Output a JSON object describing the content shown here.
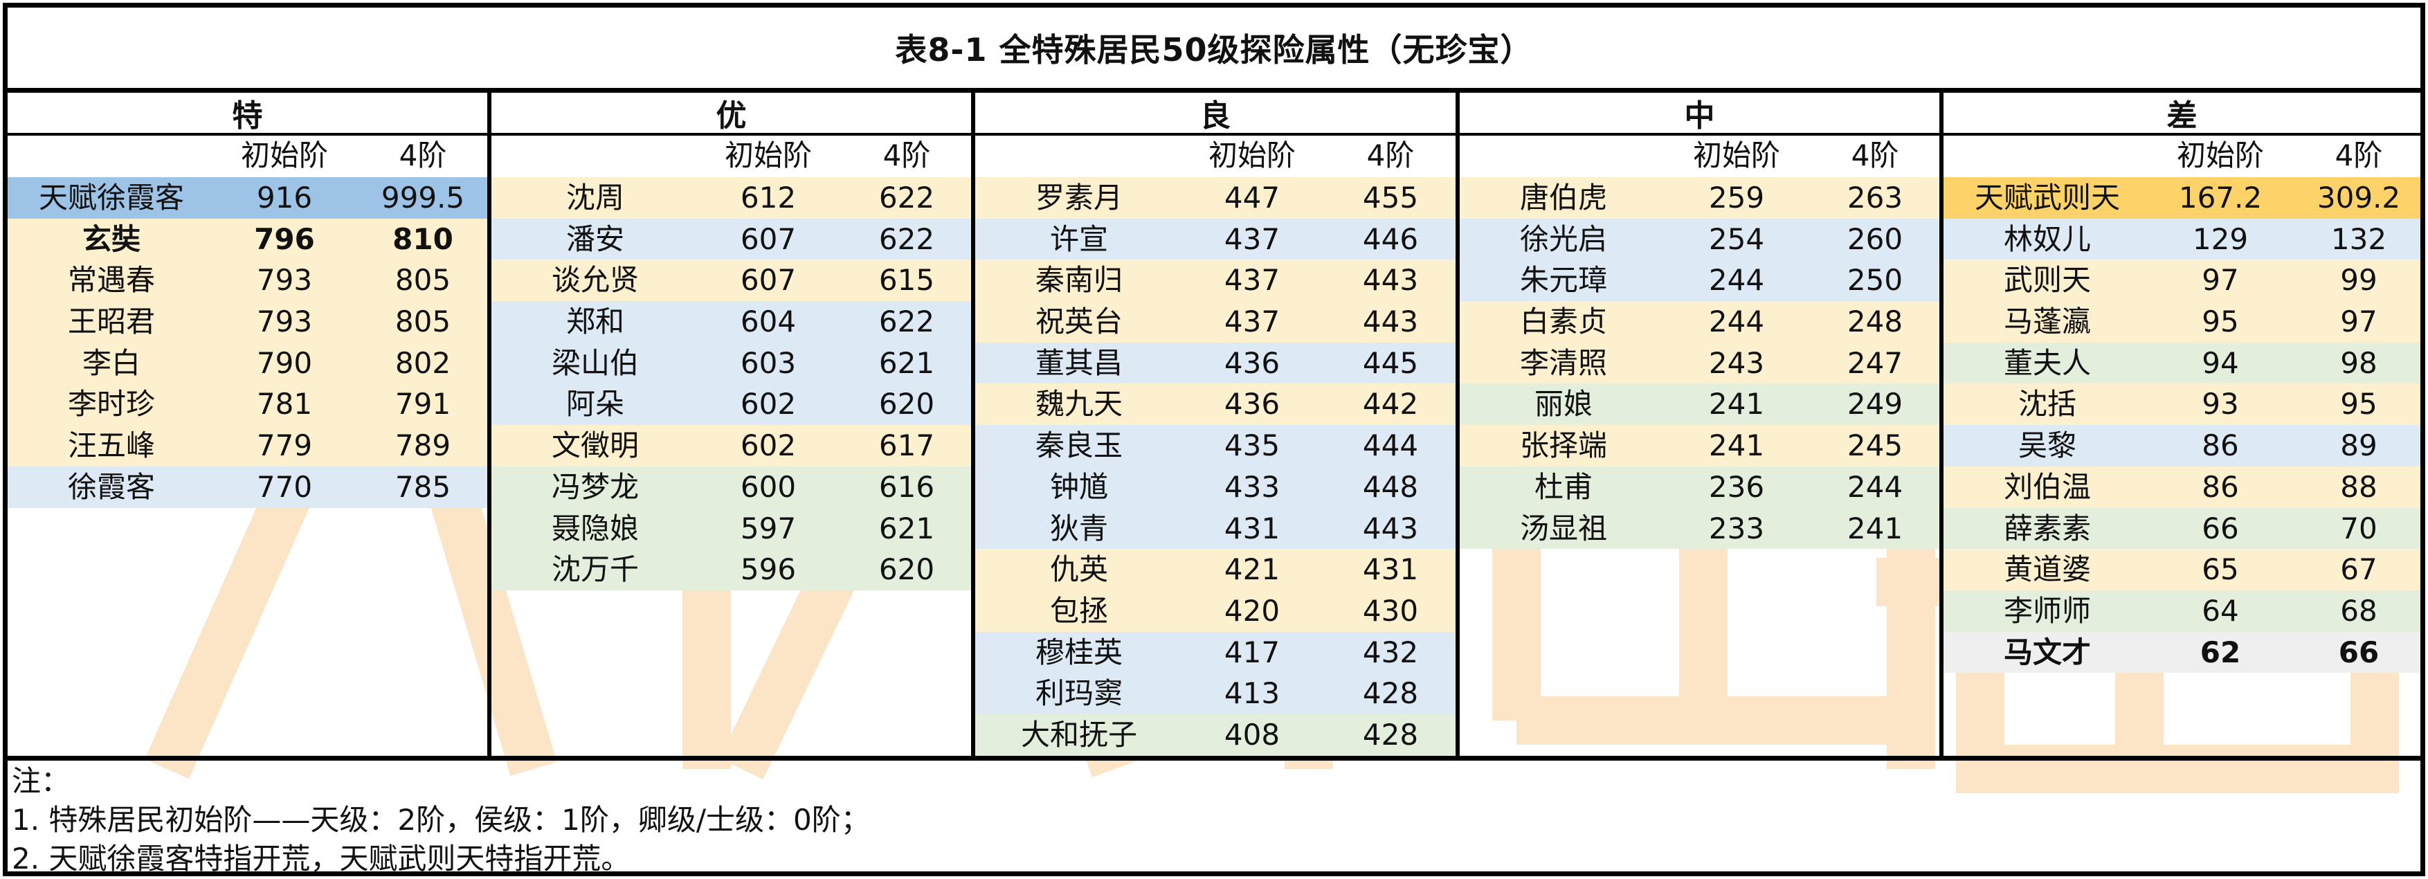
{
  "title": "表8-1 全特殊居民50级探险属性（无珍宝）",
  "column_labels": {
    "initial": "初始阶",
    "tier4": "4阶"
  },
  "colors": {
    "yellow": "#fdf0cf",
    "blue": "#dde9f5",
    "green": "#e3efdc",
    "highlight_blue": "#9dc3e6",
    "highlight_gold": "#fdd369",
    "gray": "#efefef",
    "watermark": "#fbdcb4"
  },
  "tiers": [
    {
      "name": "特",
      "rows": [
        {
          "name": "天赋徐霞客",
          "initial": "916",
          "tier4": "999.5",
          "color": "highlight_blue"
        },
        {
          "name": "玄奘",
          "initial": "796",
          "tier4": "810",
          "color": "yellow",
          "bold": true
        },
        {
          "name": "常遇春",
          "initial": "793",
          "tier4": "805",
          "color": "yellow"
        },
        {
          "name": "王昭君",
          "initial": "793",
          "tier4": "805",
          "color": "yellow"
        },
        {
          "name": "李白",
          "initial": "790",
          "tier4": "802",
          "color": "yellow"
        },
        {
          "name": "李时珍",
          "initial": "781",
          "tier4": "791",
          "color": "yellow"
        },
        {
          "name": "汪五峰",
          "initial": "779",
          "tier4": "789",
          "color": "yellow"
        },
        {
          "name": "徐霞客",
          "initial": "770",
          "tier4": "785",
          "color": "blue"
        }
      ]
    },
    {
      "name": "优",
      "rows": [
        {
          "name": "沈周",
          "initial": "612",
          "tier4": "622",
          "color": "yellow"
        },
        {
          "name": "潘安",
          "initial": "607",
          "tier4": "622",
          "color": "blue"
        },
        {
          "name": "谈允贤",
          "initial": "607",
          "tier4": "615",
          "color": "yellow"
        },
        {
          "name": "郑和",
          "initial": "604",
          "tier4": "622",
          "color": "blue"
        },
        {
          "name": "梁山伯",
          "initial": "603",
          "tier4": "621",
          "color": "blue"
        },
        {
          "name": "阿朵",
          "initial": "602",
          "tier4": "620",
          "color": "blue"
        },
        {
          "name": "文徵明",
          "initial": "602",
          "tier4": "617",
          "color": "yellow"
        },
        {
          "name": "冯梦龙",
          "initial": "600",
          "tier4": "616",
          "color": "green"
        },
        {
          "name": "聂隐娘",
          "initial": "597",
          "tier4": "621",
          "color": "green"
        },
        {
          "name": "沈万千",
          "initial": "596",
          "tier4": "620",
          "color": "green"
        }
      ]
    },
    {
      "name": "良",
      "rows": [
        {
          "name": "罗素月",
          "initial": "447",
          "tier4": "455",
          "color": "yellow"
        },
        {
          "name": "许宣",
          "initial": "437",
          "tier4": "446",
          "color": "blue"
        },
        {
          "name": "秦南归",
          "initial": "437",
          "tier4": "443",
          "color": "yellow"
        },
        {
          "name": "祝英台",
          "initial": "437",
          "tier4": "443",
          "color": "yellow"
        },
        {
          "name": "董其昌",
          "initial": "436",
          "tier4": "445",
          "color": "blue"
        },
        {
          "name": "魏九天",
          "initial": "436",
          "tier4": "442",
          "color": "yellow"
        },
        {
          "name": "秦良玉",
          "initial": "435",
          "tier4": "444",
          "color": "blue"
        },
        {
          "name": "钟馗",
          "initial": "433",
          "tier4": "448",
          "color": "blue"
        },
        {
          "name": "狄青",
          "initial": "431",
          "tier4": "443",
          "color": "blue"
        },
        {
          "name": "仇英",
          "initial": "421",
          "tier4": "431",
          "color": "yellow"
        },
        {
          "name": "包拯",
          "initial": "420",
          "tier4": "430",
          "color": "yellow"
        },
        {
          "name": "穆桂英",
          "initial": "417",
          "tier4": "432",
          "color": "blue"
        },
        {
          "name": "利玛窦",
          "initial": "413",
          "tier4": "428",
          "color": "blue"
        },
        {
          "name": "大和抚子",
          "initial": "408",
          "tier4": "428",
          "color": "green"
        }
      ]
    },
    {
      "name": "中",
      "rows": [
        {
          "name": "唐伯虎",
          "initial": "259",
          "tier4": "263",
          "color": "yellow"
        },
        {
          "name": "徐光启",
          "initial": "254",
          "tier4": "260",
          "color": "blue"
        },
        {
          "name": "朱元璋",
          "initial": "244",
          "tier4": "250",
          "color": "blue"
        },
        {
          "name": "白素贞",
          "initial": "244",
          "tier4": "248",
          "color": "yellow"
        },
        {
          "name": "李清照",
          "initial": "243",
          "tier4": "247",
          "color": "yellow"
        },
        {
          "name": "丽娘",
          "initial": "241",
          "tier4": "249",
          "color": "green"
        },
        {
          "name": "张择端",
          "initial": "241",
          "tier4": "245",
          "color": "yellow"
        },
        {
          "name": "杜甫",
          "initial": "236",
          "tier4": "244",
          "color": "green"
        },
        {
          "name": "汤显祖",
          "initial": "233",
          "tier4": "241",
          "color": "green"
        }
      ]
    },
    {
      "name": "差",
      "rows": [
        {
          "name": "天赋武则天",
          "initial": "167.2",
          "tier4": "309.2",
          "color": "highlight_gold"
        },
        {
          "name": "林奴儿",
          "initial": "129",
          "tier4": "132",
          "color": "blue"
        },
        {
          "name": "武则天",
          "initial": "97",
          "tier4": "99",
          "color": "yellow"
        },
        {
          "name": "马蓬瀛",
          "initial": "95",
          "tier4": "97",
          "color": "yellow"
        },
        {
          "name": "董夫人",
          "initial": "94",
          "tier4": "98",
          "color": "green"
        },
        {
          "name": "沈括",
          "initial": "93",
          "tier4": "95",
          "color": "yellow"
        },
        {
          "name": "吴黎",
          "initial": "86",
          "tier4": "89",
          "color": "blue"
        },
        {
          "name": "刘伯温",
          "initial": "86",
          "tier4": "88",
          "color": "yellow"
        },
        {
          "name": "薛素素",
          "initial": "66",
          "tier4": "70",
          "color": "green"
        },
        {
          "name": "黄道婆",
          "initial": "65",
          "tier4": "67",
          "color": "yellow"
        },
        {
          "name": "李师师",
          "initial": "64",
          "tier4": "68",
          "color": "green"
        },
        {
          "name": "马文才",
          "initial": "62",
          "tier4": "66",
          "color": "gray",
          "bold": true
        }
      ]
    }
  ],
  "notes": [
    "注：",
    "1. 特殊居民初始阶——天级：2阶，侯级：1阶，卿级/士级：0阶；",
    "2. 天赋徐霞客特指开荒，天赋武则天特指开荒。"
  ]
}
